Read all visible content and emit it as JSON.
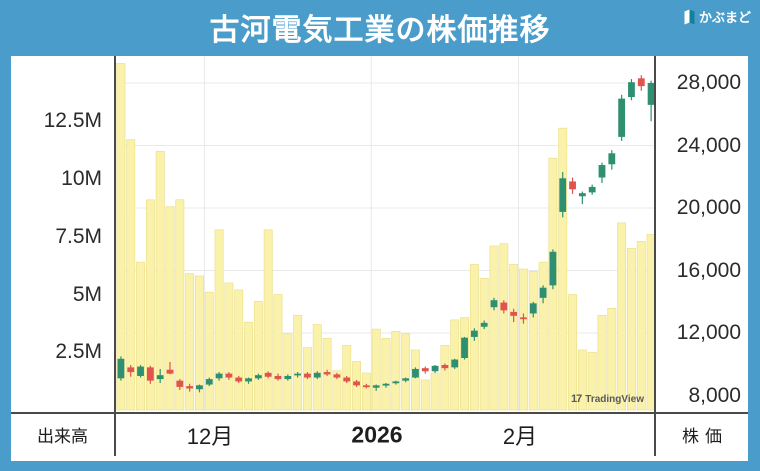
{
  "header": {
    "title": "古河電気工業の株価推移",
    "brand": "かぶまど"
  },
  "axes": {
    "volume_axis_title": "出来高",
    "price_axis_title": "株価",
    "volume_labels": [
      "12.5M",
      "10M",
      "7.5M",
      "5M",
      "2.5M"
    ],
    "price_labels": [
      "28,000",
      "24,000",
      "20,000",
      "16,000",
      "12,000",
      "8,000"
    ],
    "x_labels": [
      "12月",
      "2026",
      "2月"
    ]
  },
  "watermark": {
    "logo_glyph": "17",
    "text": "TradingView"
  },
  "colors": {
    "accent_blue": "#4A9DCA",
    "up": "#2E9070",
    "down": "#E0544E",
    "volume_bar": "#FAF2AB",
    "volume_bar_edge": "#ECE08D",
    "grid": "#E9E9E9",
    "axis_text": "#2B2B2B"
  },
  "chart_data": {
    "type": "candlestick_with_volume",
    "title": "古河電気工業の株価推移",
    "legend": "none",
    "grid": "on",
    "price_axis": {
      "side": "right",
      "min": 8000,
      "max_visible_tick": 28000,
      "ticks": [
        8000,
        12000,
        16000,
        20000,
        24000,
        28000
      ],
      "gridlines": [
        28000,
        24000,
        20000,
        16000,
        12000
      ]
    },
    "volume_axis": {
      "side": "left",
      "unit": "millions of shares",
      "ticks_M": [
        2.5,
        5,
        7.5,
        10,
        12.5
      ]
    },
    "x_axis": {
      "labels": [
        "12月",
        "2026",
        "2月"
      ],
      "gridline_bar_indices": [
        9,
        26,
        41
      ]
    },
    "bar_columns": [
      "open",
      "high",
      "low",
      "close",
      "volume_M"
    ],
    "bars": [
      [
        9100,
        10500,
        8950,
        10350,
        15.0
      ],
      [
        9800,
        9950,
        9200,
        9500,
        11.7
      ],
      [
        9250,
        9950,
        9150,
        9850,
        6.4
      ],
      [
        9800,
        9900,
        8750,
        8950,
        9.1
      ],
      [
        9050,
        9700,
        8800,
        9300,
        11.2
      ],
      [
        9650,
        10150,
        9350,
        9400,
        8.8
      ],
      [
        8950,
        9050,
        8350,
        8550,
        9.1
      ],
      [
        8600,
        8750,
        8250,
        8450,
        5.9
      ],
      [
        8400,
        8700,
        8200,
        8650,
        5.8
      ],
      [
        8700,
        9150,
        8600,
        9050,
        5.1
      ],
      [
        9100,
        9500,
        8950,
        9400,
        7.8
      ],
      [
        9400,
        9500,
        9000,
        9150,
        5.5
      ],
      [
        9150,
        9250,
        8800,
        8900,
        5.2
      ],
      [
        8900,
        9150,
        8750,
        9100,
        3.8
      ],
      [
        9100,
        9400,
        9000,
        9300,
        4.7
      ],
      [
        9450,
        9550,
        9100,
        9200,
        7.8
      ],
      [
        9250,
        9400,
        8950,
        9050,
        5.0
      ],
      [
        9050,
        9350,
        8950,
        9250,
        3.3
      ],
      [
        9350,
        9500,
        9150,
        9400,
        4.1
      ],
      [
        9400,
        9500,
        9050,
        9150,
        2.7
      ],
      [
        9150,
        9550,
        9050,
        9450,
        3.7
      ],
      [
        9500,
        9650,
        9250,
        9350,
        3.1
      ],
      [
        9350,
        9450,
        9050,
        9150,
        1.7
      ],
      [
        9150,
        9250,
        8800,
        8900,
        2.8
      ],
      [
        8900,
        9000,
        8550,
        8650,
        2.1
      ],
      [
        8650,
        8750,
        8450,
        8550,
        1.6
      ],
      [
        8500,
        8700,
        8300,
        8650,
        3.5
      ],
      [
        8650,
        8800,
        8500,
        8750,
        3.1
      ],
      [
        8800,
        8950,
        8700,
        8900,
        3.4
      ],
      [
        8950,
        9150,
        8850,
        9100,
        3.3
      ],
      [
        9150,
        9800,
        9100,
        9700,
        2.6
      ],
      [
        9750,
        9850,
        9400,
        9550,
        1.3
      ],
      [
        9550,
        9950,
        9450,
        9900,
        1.6
      ],
      [
        9950,
        10050,
        9600,
        9750,
        2.8
      ],
      [
        9800,
        10350,
        9700,
        10300,
        3.9
      ],
      [
        10400,
        11750,
        10300,
        11700,
        4.0
      ],
      [
        11750,
        12300,
        11500,
        12150,
        6.3
      ],
      [
        12400,
        12800,
        12250,
        12650,
        5.7
      ],
      [
        13650,
        14250,
        13450,
        14100,
        7.1
      ],
      [
        13950,
        14100,
        13250,
        13450,
        7.2
      ],
      [
        13350,
        13550,
        12700,
        13100,
        6.3
      ],
      [
        13000,
        13250,
        12600,
        12950,
        6.1
      ],
      [
        13250,
        14000,
        13000,
        13900,
        6.0
      ],
      [
        14250,
        15050,
        13900,
        14900,
        6.4
      ],
      [
        15050,
        17350,
        14800,
        17200,
        10.9
      ],
      [
        19750,
        22300,
        19400,
        21900,
        12.2
      ],
      [
        21700,
        21950,
        20900,
        21200,
        5.0
      ],
      [
        20750,
        21050,
        20250,
        20950,
        2.6
      ],
      [
        21000,
        21500,
        20850,
        21350,
        2.5
      ],
      [
        21950,
        22900,
        21600,
        22750,
        4.1
      ],
      [
        22800,
        23700,
        22450,
        23500,
        4.4
      ],
      [
        24550,
        27250,
        24300,
        27000,
        8.1
      ],
      [
        27100,
        28250,
        26900,
        28050,
        7.0
      ],
      [
        28300,
        28500,
        27500,
        27800,
        7.3
      ],
      [
        26600,
        28150,
        25550,
        28000,
        7.6
      ]
    ]
  }
}
